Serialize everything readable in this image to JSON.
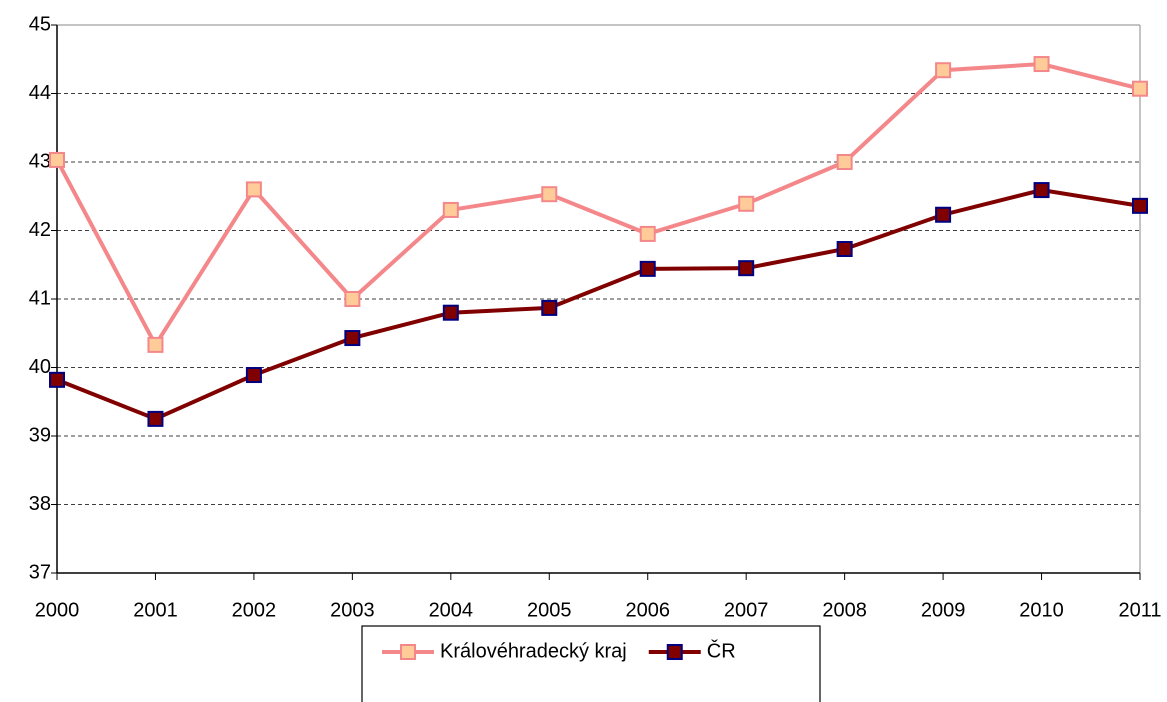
{
  "chart_data": {
    "type": "line",
    "x": [
      2000,
      2001,
      2002,
      2003,
      2004,
      2005,
      2006,
      2007,
      2008,
      2009,
      2010,
      2011
    ],
    "xlim": [
      2000,
      2011
    ],
    "xticks": [
      2000,
      2001,
      2002,
      2003,
      2004,
      2005,
      2006,
      2007,
      2008,
      2009,
      2010,
      2011
    ],
    "ylim": [
      37,
      45
    ],
    "yticks": [
      37,
      38,
      39,
      40,
      41,
      42,
      43,
      44,
      45
    ],
    "grid": true,
    "legend": "bottom",
    "series": [
      {
        "name": "Královéhradecký kraj",
        "color": "#f4878a",
        "marker_color": "#ffcc99",
        "values": [
          43.03,
          40.33,
          42.6,
          41.0,
          42.3,
          42.53,
          41.95,
          42.39,
          43.0,
          44.34,
          44.43,
          44.07
        ]
      },
      {
        "name": "ČR",
        "color": "#800000",
        "marker_color": "#000080",
        "values": [
          39.82,
          39.25,
          39.89,
          40.43,
          40.8,
          40.87,
          41.44,
          41.45,
          41.73,
          42.23,
          42.59,
          42.36
        ]
      }
    ]
  }
}
